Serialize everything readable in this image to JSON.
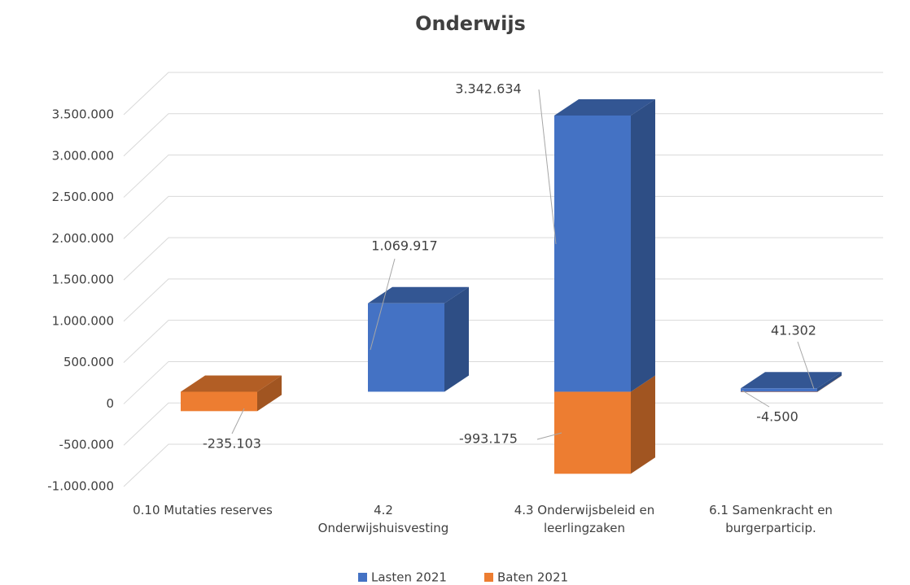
{
  "chart_data": {
    "type": "bar3d_stacked",
    "title": "Onderwijs",
    "categories": [
      "0.10 Mutaties reserves",
      "4.2 Onderwijshuisvesting",
      "4.3 Onderwijsbeleid en leerlingzaken",
      "6.1 Samenkracht en burgerparticip."
    ],
    "series": [
      {
        "name": "Lasten 2021",
        "color": "#4472c4",
        "values": [
          null,
          1069917,
          3342634,
          41302
        ],
        "value_labels": [
          null,
          "1.069.917",
          "3.342.634",
          "41.302"
        ]
      },
      {
        "name": "Baten 2021",
        "color": "#ed7d31",
        "values": [
          -235103,
          null,
          -993175,
          -4500
        ],
        "value_labels": [
          "-235.103",
          null,
          "-993.175",
          "-4.500"
        ]
      }
    ],
    "ylim": [
      -1000000,
      3500000
    ],
    "yticks": [
      {
        "value": -1000000,
        "label": "-1.000.000"
      },
      {
        "value": -500000,
        "label": "-500.000"
      },
      0,
      {
        "value": 500000,
        "label": "500.000"
      },
      {
        "value": 1000000,
        "label": "1.000.000"
      },
      {
        "value": 1500000,
        "label": "1.500.000"
      },
      {
        "value": 2000000,
        "label": "2.000.000"
      },
      {
        "value": 2500000,
        "label": "2.500.000"
      },
      {
        "value": 3000000,
        "label": "3.000.000"
      },
      {
        "value": 3500000,
        "label": "3.500.000"
      }
    ],
    "grid": true,
    "legend": "bottom"
  }
}
